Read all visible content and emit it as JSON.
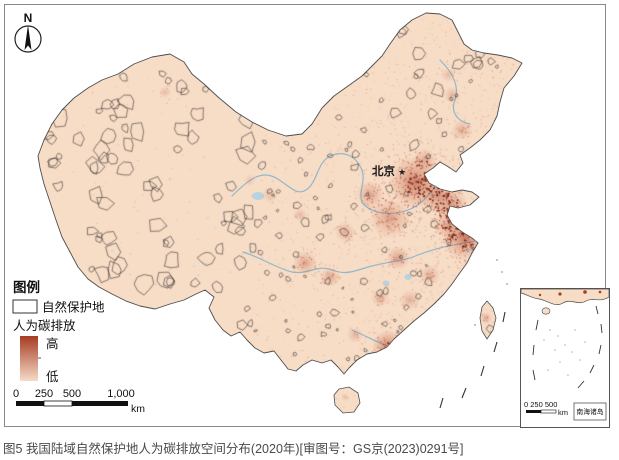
{
  "figure": {
    "caption": "图5 我国陆域自然保护地人为碳排放空间分布(2020年)[审图号：GS京(2023)0291号]"
  },
  "map": {
    "north_label": "N",
    "beijing": {
      "label": "北京",
      "marker": "★"
    },
    "colors": {
      "land": "#f7dcc6",
      "coast": "#4d4d4d",
      "reserve_outline": "#1a1a1a",
      "emission_high": "#a63b22",
      "emission_low": "#f5dbc8",
      "river": "#8fb8cc",
      "frame": "#8a8a8a"
    }
  },
  "legend": {
    "title": "图例",
    "reserve_label": "自然保护地",
    "emission_label": "人为碳排放",
    "high_label": "高",
    "low_label": "低"
  },
  "scalebar": {
    "ticks": [
      "0",
      "250",
      "500",
      "1,000"
    ],
    "unit": "km"
  },
  "inset": {
    "title": "南海诸岛",
    "scale_ticks": "0 250 500",
    "unit": "km"
  }
}
